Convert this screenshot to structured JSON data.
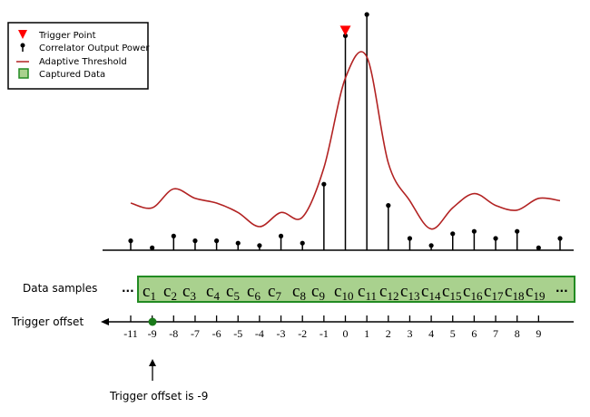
{
  "legend": {
    "items": [
      {
        "label": "Trigger Point",
        "icon": "red-triangle-icon"
      },
      {
        "label": "Correlator Output Power",
        "icon": "stem-marker-icon"
      },
      {
        "label": "Adaptive Threshold",
        "icon": "red-line-icon"
      },
      {
        "label": "Captured Data",
        "icon": "green-box-icon"
      }
    ]
  },
  "colors": {
    "trigger": "#ff0000",
    "threshold": "#b22222",
    "captured_fill": "#a9d18e",
    "captured_border": "#228b22",
    "marker": "#000000",
    "offset_dot": "#1a7a1a"
  },
  "data_samples": {
    "label": "Data samples",
    "ellipsis_left": "...",
    "ellipsis_right": "...",
    "items": [
      {
        "base": "c",
        "sub": "1"
      },
      {
        "base": "c",
        "sub": "2"
      },
      {
        "base": "c",
        "sub": "3"
      },
      {
        "base": "c",
        "sub": "4"
      },
      {
        "base": "c",
        "sub": "5"
      },
      {
        "base": "c",
        "sub": "6"
      },
      {
        "base": "c",
        "sub": "7"
      },
      {
        "base": "c",
        "sub": "8"
      },
      {
        "base": "c",
        "sub": "9"
      },
      {
        "base": "c",
        "sub": "10"
      },
      {
        "base": "c",
        "sub": "11"
      },
      {
        "base": "c",
        "sub": "12"
      },
      {
        "base": "c",
        "sub": "13"
      },
      {
        "base": "c",
        "sub": "14"
      },
      {
        "base": "c",
        "sub": "15"
      },
      {
        "base": "c",
        "sub": "16"
      },
      {
        "base": "c",
        "sub": "17"
      },
      {
        "base": "c",
        "sub": "18"
      },
      {
        "base": "c",
        "sub": "19"
      }
    ]
  },
  "trigger_offset": {
    "label": "Trigger offset",
    "tick_labels": [
      "-11",
      "-9",
      "-8",
      "-7",
      "-6",
      "-5",
      "-4",
      "-3",
      "-2",
      "-1",
      "0",
      "1",
      "2",
      "3",
      "4",
      "5",
      "6",
      "7",
      "8",
      "9"
    ],
    "annotation": "Trigger offset is -9",
    "marked_value": "-9"
  },
  "stems": [
    0.04,
    0.01,
    0.06,
    0.04,
    0.04,
    0.03,
    0.02,
    0.06,
    0.03,
    0.28,
    0.91,
    1.0,
    0.19,
    0.05,
    0.02,
    0.07,
    0.08,
    0.05,
    0.08,
    0.01,
    0.05
  ],
  "threshold": [
    0.2,
    0.18,
    0.26,
    0.22,
    0.2,
    0.16,
    0.1,
    0.16,
    0.14,
    0.35,
    0.73,
    0.82,
    0.37,
    0.21,
    0.09,
    0.18,
    0.24,
    0.19,
    0.17,
    0.22,
    0.21
  ],
  "trigger_index": 10
}
